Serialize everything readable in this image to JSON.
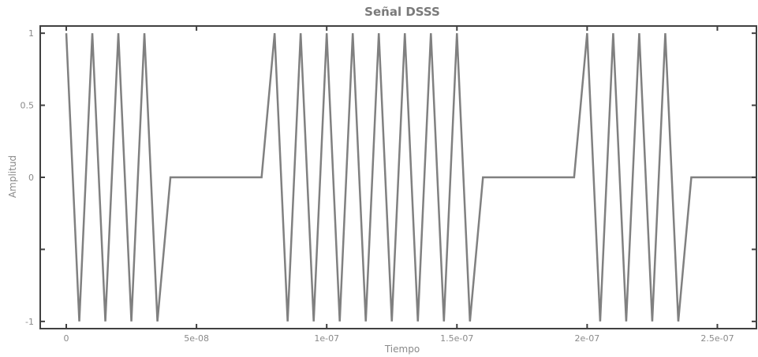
{
  "chart_data": {
    "type": "line",
    "title": "Señal DSSS",
    "xlabel": "Tiempo",
    "ylabel": "Amplitud",
    "xlim": [
      -1e-08,
      2.65e-07
    ],
    "ylim": [
      -1.05,
      1.05
    ],
    "x_ticks": [
      {
        "value": 0,
        "label": "0"
      },
      {
        "value": 5e-08,
        "label": "5e-08"
      },
      {
        "value": 1e-07,
        "label": "1e-07"
      },
      {
        "value": 1.5e-07,
        "label": "1.5e-07"
      },
      {
        "value": 2e-07,
        "label": "2e-07"
      },
      {
        "value": 2.5e-07,
        "label": "2.5e-07"
      }
    ],
    "y_ticks": [
      {
        "value": 1,
        "label": "1"
      },
      {
        "value": 0.5,
        "label": "0.5"
      },
      {
        "value": 0,
        "label": "0"
      },
      {
        "value": -0.5,
        "label": ""
      },
      {
        "value": -1,
        "label": "-1"
      }
    ],
    "grid": false,
    "line_color": "#808080",
    "axis_color": "#404040",
    "series": [
      {
        "x": [
          0,
          5e-09,
          1e-08,
          1.5e-08,
          2e-08,
          2.5e-08,
          3e-08,
          3.5e-08,
          4e-08,
          7.5e-08,
          8e-08,
          8.5e-08,
          9e-08,
          9.5e-08,
          1e-07,
          1.05e-07,
          1.1e-07,
          1.15e-07,
          1.2e-07,
          1.25e-07,
          1.3e-07,
          1.35e-07,
          1.4e-07,
          1.45e-07,
          1.5e-07,
          1.55e-07,
          1.6e-07,
          1.95e-07,
          2e-07,
          2.05e-07,
          2.1e-07,
          2.15e-07,
          2.2e-07,
          2.25e-07,
          2.3e-07,
          2.35e-07,
          2.4e-07,
          2.65e-07
        ],
        "y": [
          1,
          -1,
          1,
          -1,
          1,
          -1,
          1,
          -1,
          0,
          0,
          1,
          -1,
          1,
          -1,
          1,
          -1,
          1,
          -1,
          1,
          -1,
          1,
          -1,
          1,
          -1,
          1,
          -1,
          0,
          0,
          1,
          -1,
          1,
          -1,
          1,
          -1,
          1,
          -1,
          0,
          0
        ]
      }
    ]
  }
}
